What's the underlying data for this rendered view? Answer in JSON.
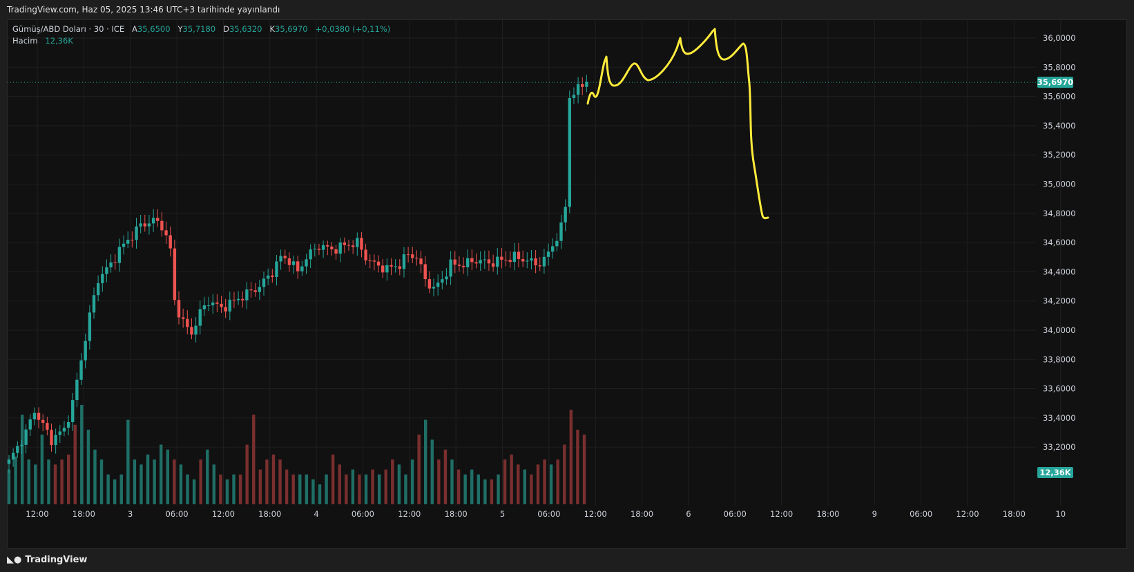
{
  "header": {
    "published": "TradingView.com, Haz 05, 2025 13:46 UTC+3 tarihinde yayınlandı"
  },
  "legend": {
    "symbol": "Gümüş/ABD Doları · 30 · ICE",
    "open_label": "A",
    "open": "35,6500",
    "high_label": "Y",
    "high": "35,7180",
    "low_label": "D",
    "low": "35,6320",
    "close_label": "K",
    "close": "35,6970",
    "change": "+0,0380 (+0,11%)",
    "volume_label": "Hacim",
    "volume": "12,36K"
  },
  "footer": {
    "brand": "TradingView",
    "brand_icon": "tradingview-logo-icon"
  },
  "colors": {
    "up": "#26a69a",
    "down": "#ef5350",
    "up_vol": "#1f6f66",
    "down_vol": "#7a2f2f",
    "drawing": "#ffeb3b",
    "grid": "#1f1f1f"
  },
  "chart_data": {
    "type": "candlestick",
    "symbol": "Gümüş/ABD Doları",
    "interval": "30",
    "ylim": [
      33.0,
      36.1
    ],
    "y_ticks": [
      "36,0000",
      "35,8000",
      "35,6000",
      "35,4000",
      "35,2000",
      "35,0000",
      "34,8000",
      "34,6000",
      "34,4000",
      "34,2000",
      "34,0000",
      "33,8000",
      "33,6000",
      "33,4000",
      "33,2000"
    ],
    "x_ticks": [
      "12:00",
      "18:00",
      "3",
      "06:00",
      "12:00",
      "18:00",
      "4",
      "06:00",
      "12:00",
      "18:00",
      "5",
      "06:00",
      "12:00",
      "18:00",
      "6",
      "06:00",
      "12:00",
      "18:00",
      "9",
      "06:00",
      "12:00",
      "18:00",
      "10"
    ],
    "current_price": "35,6970",
    "current_volume": "12,36K",
    "candles_close_path": [
      [
        0,
        33.1
      ],
      [
        4,
        33.3
      ],
      [
        6,
        33.45
      ],
      [
        8,
        33.35
      ],
      [
        10,
        33.25
      ],
      [
        13,
        33.32
      ],
      [
        15,
        33.5
      ],
      [
        17,
        33.8
      ],
      [
        19,
        34.1
      ],
      [
        21,
        34.35
      ],
      [
        24,
        34.45
      ],
      [
        26,
        34.55
      ],
      [
        29,
        34.65
      ],
      [
        31,
        34.72
      ],
      [
        34,
        34.75
      ],
      [
        36,
        34.72
      ],
      [
        38,
        34.55
      ],
      [
        39,
        34.2
      ],
      [
        41,
        34.05
      ],
      [
        43,
        33.98
      ],
      [
        45,
        34.12
      ],
      [
        47,
        34.2
      ],
      [
        50,
        34.15
      ],
      [
        53,
        34.2
      ],
      [
        56,
        34.25
      ],
      [
        59,
        34.3
      ],
      [
        62,
        34.4
      ],
      [
        64,
        34.5
      ],
      [
        66,
        34.48
      ],
      [
        68,
        34.4
      ],
      [
        70,
        34.5
      ],
      [
        73,
        34.58
      ],
      [
        76,
        34.55
      ],
      [
        79,
        34.58
      ],
      [
        82,
        34.6
      ],
      [
        84,
        34.5
      ],
      [
        86,
        34.45
      ],
      [
        89,
        34.42
      ],
      [
        92,
        34.45
      ],
      [
        94,
        34.52
      ],
      [
        96,
        34.5
      ],
      [
        98,
        34.35
      ],
      [
        100,
        34.28
      ],
      [
        102,
        34.35
      ],
      [
        104,
        34.45
      ],
      [
        107,
        34.45
      ],
      [
        110,
        34.48
      ],
      [
        113,
        34.46
      ],
      [
        116,
        34.48
      ],
      [
        119,
        34.5
      ],
      [
        122,
        34.48
      ],
      [
        124,
        34.45
      ],
      [
        126,
        34.48
      ],
      [
        128,
        34.58
      ],
      [
        130,
        34.7
      ],
      [
        131,
        34.85
      ],
      [
        132,
        35.6
      ],
      [
        134,
        35.65
      ],
      [
        136,
        35.7
      ]
    ],
    "volume_series": [
      0.35,
      0.48,
      0.9,
      0.45,
      0.4,
      0.7,
      0.45,
      0.4,
      0.45,
      0.5,
      0.8,
      1.0,
      0.75,
      0.55,
      0.45,
      0.3,
      0.25,
      0.3,
      0.85,
      0.45,
      0.4,
      0.5,
      0.45,
      0.6,
      0.55,
      0.45,
      0.4,
      0.3,
      0.25,
      0.45,
      0.55,
      0.4,
      0.3,
      0.25,
      0.3,
      0.3,
      0.6,
      0.9,
      0.35,
      0.45,
      0.5,
      0.45,
      0.35,
      0.3,
      0.3,
      0.3,
      0.25,
      0.2,
      0.3,
      0.5,
      0.4,
      0.3,
      0.35,
      0.3,
      0.3,
      0.35,
      0.3,
      0.35,
      0.45,
      0.4,
      0.3,
      0.45,
      0.7,
      0.85,
      0.65,
      0.45,
      0.55,
      0.45,
      0.35,
      0.3,
      0.35,
      0.3,
      0.25,
      0.25,
      0.3,
      0.45,
      0.5,
      0.4,
      0.35,
      0.3,
      0.4,
      0.45,
      0.4,
      0.45,
      0.6,
      0.95,
      0.75,
      0.7
    ]
  }
}
